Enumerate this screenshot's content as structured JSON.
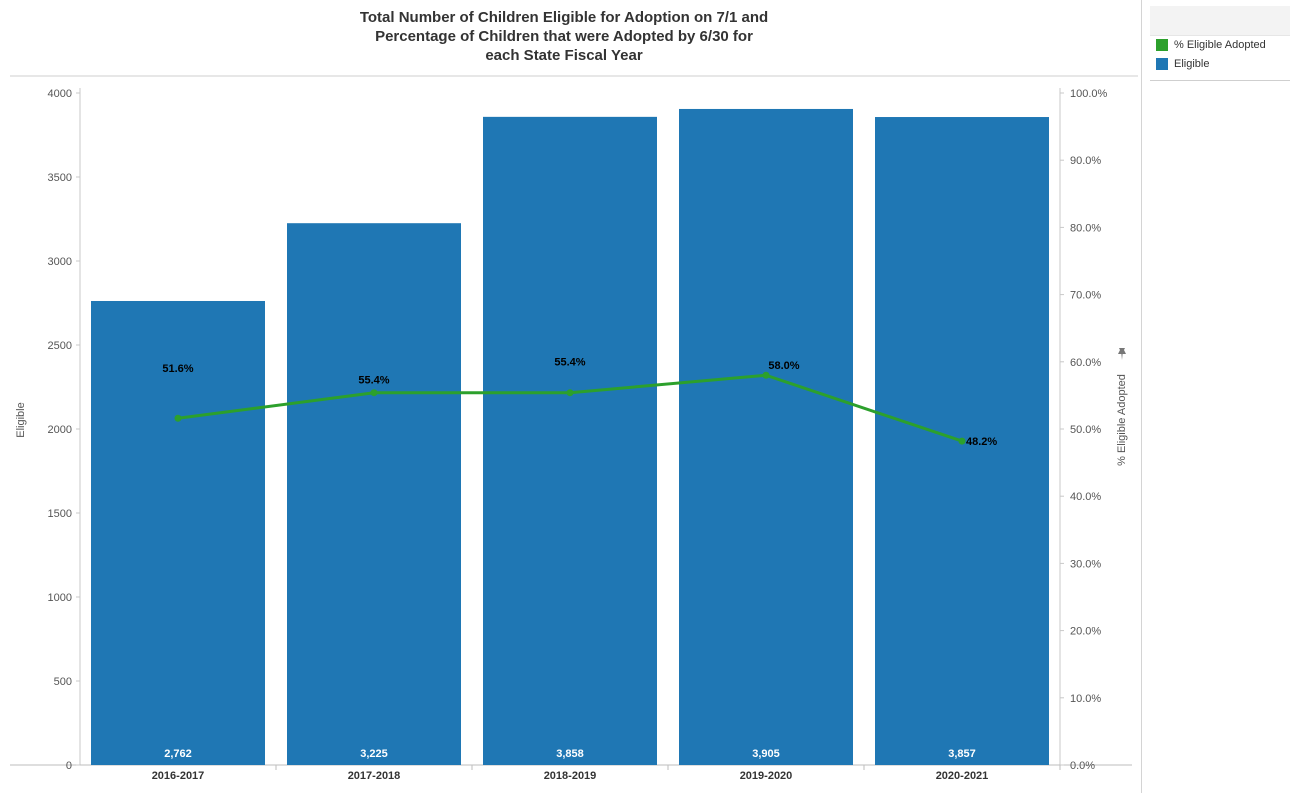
{
  "chart_data": {
    "type": "bar",
    "title_lines": [
      "Total Number of Children Eligible for Adoption on 7/1 and",
      "Percentage of Children that were Adopted by 6/30 for",
      "each State Fiscal Year"
    ],
    "categories": [
      "2016-2017",
      "2017-2018",
      "2018-2019",
      "2019-2020",
      "2020-2021"
    ],
    "series": [
      {
        "name": "Eligible",
        "type": "bar",
        "axis": "left",
        "values": [
          2762,
          3225,
          3858,
          3905,
          3857
        ],
        "labels": [
          "2,762",
          "3,225",
          "3,858",
          "3,905",
          "3,857"
        ],
        "color": "#1f77b4"
      },
      {
        "name": "% Eligible Adopted",
        "type": "line",
        "axis": "right",
        "values": [
          51.6,
          55.4,
          55.4,
          58.0,
          48.2
        ],
        "labels": [
          "51.6%",
          "55.4%",
          "55.4%",
          "58.0%",
          "48.2%"
        ],
        "color": "#2ca02c"
      }
    ],
    "ylabel": "Eligible",
    "ylabel_right": "% Eligible Adopted",
    "ylim": [
      0,
      4000
    ],
    "ylim_right": [
      0,
      100
    ],
    "yticks": [
      "0",
      "500",
      "1000",
      "1500",
      "2000",
      "2500",
      "3000",
      "3500",
      "4000"
    ],
    "yticks_right": [
      "0.0%",
      "10.0%",
      "20.0%",
      "30.0%",
      "40.0%",
      "50.0%",
      "60.0%",
      "70.0%",
      "80.0%",
      "90.0%",
      "100.0%"
    ],
    "grid": false,
    "legend_position": "top-right"
  },
  "legend": {
    "items": [
      {
        "label": "% Eligible Adopted",
        "color": "#2ca02c"
      },
      {
        "label": "Eligible",
        "color": "#1f77b4"
      }
    ]
  },
  "icons": {
    "pin": "pin-icon"
  }
}
